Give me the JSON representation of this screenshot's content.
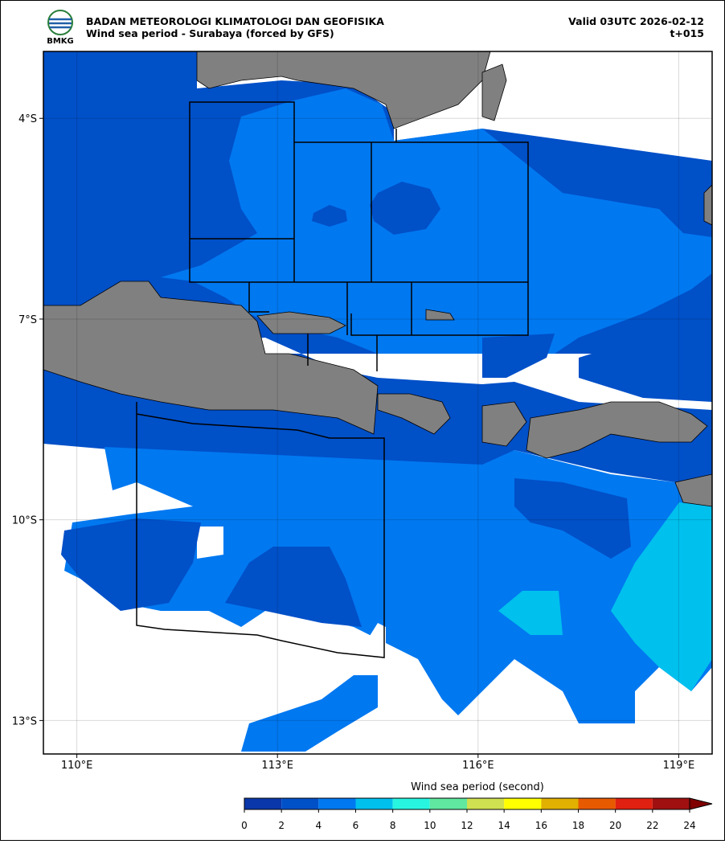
{
  "header": {
    "agency": "BADAN METEOROLOGI KLIMATOLOGI DAN GEOFISIKA",
    "subtitle": "Wind sea period - Surabaya (forced by GFS)",
    "valid": "Valid 03UTC 2026-02-12",
    "lead": "t+015",
    "logo_text": "BMKG"
  },
  "map": {
    "lon_range": [
      109.5,
      119.5
    ],
    "lat_range": [
      -3,
      -13.5
    ],
    "lon_ticks": [
      {
        "value": 110,
        "label": "110°E"
      },
      {
        "value": 113,
        "label": "113°E"
      },
      {
        "value": 116,
        "label": "116°E"
      },
      {
        "value": 119,
        "label": "119°E"
      }
    ],
    "lat_ticks": [
      {
        "value": -4,
        "label": "4°S"
      },
      {
        "value": -7,
        "label": "7°S"
      },
      {
        "value": -10,
        "label": "10°S"
      },
      {
        "value": -13,
        "label": "13°S"
      }
    ],
    "grid": true
  },
  "colorbar": {
    "label": "Wind sea period (second)",
    "ticks": [
      0,
      2,
      4,
      6,
      8,
      10,
      12,
      14,
      16,
      18,
      20,
      22,
      24
    ],
    "colors": [
      "#0a37aa",
      "#0050c8",
      "#0078f0",
      "#00c0ee",
      "#28f5e0",
      "#60e8a0",
      "#cfe050",
      "#ffff00",
      "#e2b000",
      "#e85a00",
      "#e02010",
      "#a01010"
    ],
    "extend_color": "#800000"
  }
}
